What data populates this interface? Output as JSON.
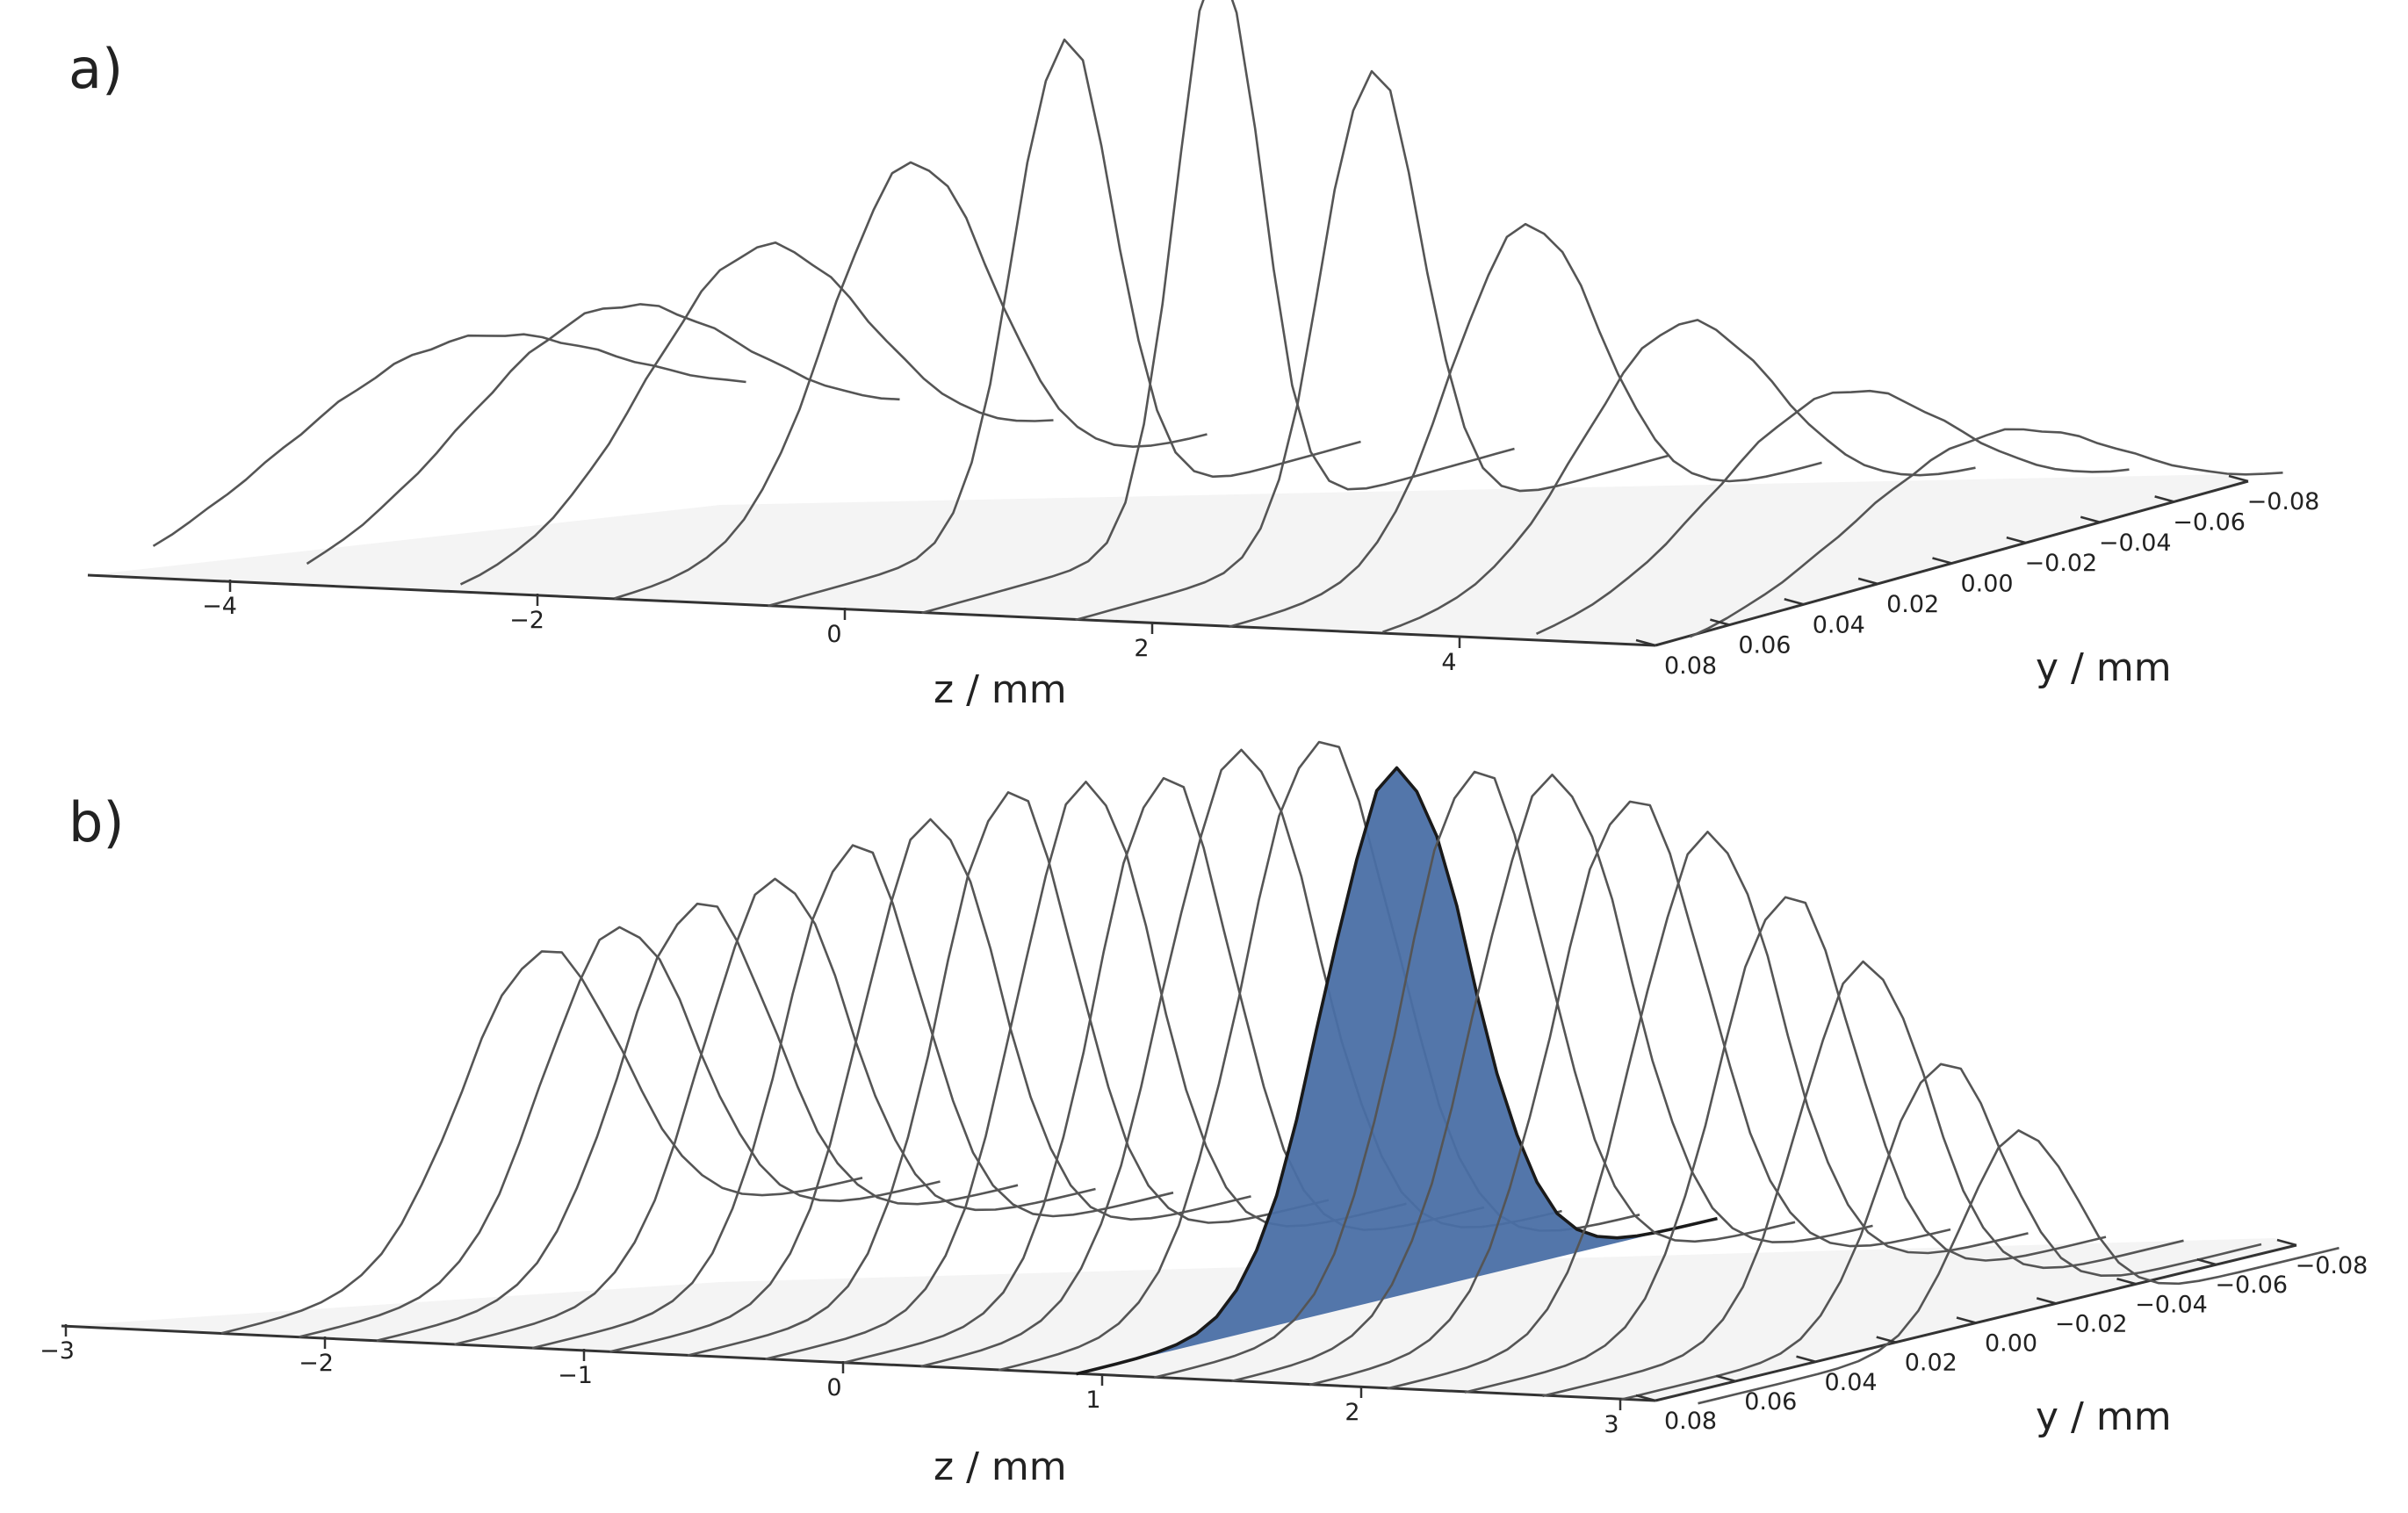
{
  "chart_data": [
    {
      "panel_label": "a)",
      "type": "waterfall-3d",
      "xlabel": "z / mm",
      "ylabel": "y / mm",
      "z_ticks": [
        "−4",
        "−2",
        "0",
        "2",
        "4"
      ],
      "y_ticks": [
        "0.08",
        "0.06",
        "0.04",
        "0.02",
        "0.00",
        "−0.02",
        "−0.04",
        "−0.06",
        "−0.08"
      ],
      "zlim": [
        -5,
        5
      ],
      "ylim": [
        0.08,
        -0.08
      ],
      "line_color": "#555555",
      "series": [
        {
          "z": -4.5,
          "peak": 0.27,
          "width": 0.045
        },
        {
          "z": -3.5,
          "peak": 0.34,
          "width": 0.038
        },
        {
          "z": -2.5,
          "peak": 0.46,
          "width": 0.03
        },
        {
          "z": -1.5,
          "peak": 0.62,
          "width": 0.022
        },
        {
          "z": -0.5,
          "peak": 0.85,
          "width": 0.0135
        },
        {
          "z": 0.5,
          "peak": 1.0,
          "width": 0.0115
        },
        {
          "z": 1.5,
          "peak": 0.82,
          "width": 0.0135
        },
        {
          "z": 2.5,
          "peak": 0.56,
          "width": 0.02
        },
        {
          "z": 3.5,
          "peak": 0.4,
          "width": 0.026
        },
        {
          "z": 4.5,
          "peak": 0.29,
          "width": 0.032
        },
        {
          "z": 5.5,
          "peak": 0.23,
          "width": 0.036
        }
      ]
    },
    {
      "panel_label": "b)",
      "type": "waterfall-3d",
      "xlabel": "z / mm",
      "ylabel": "y / mm",
      "z_ticks": [
        "−3",
        "−2",
        "−1",
        "0",
        "1",
        "2",
        "3"
      ],
      "y_ticks": [
        "0.08",
        "0.06",
        "0.04",
        "0.02",
        "0.00",
        "−0.02",
        "−0.04",
        "−0.06",
        "−0.08"
      ],
      "zlim": [
        -3,
        3
      ],
      "ylim": [
        0.08,
        -0.08
      ],
      "line_color": "#555555",
      "highlight_color": "#4a6fa5",
      "highlight_index": 11,
      "series": [
        {
          "z": -2.4,
          "peak": 0.55,
          "width": 0.02
        },
        {
          "z": -2.1,
          "peak": 0.6,
          "width": 0.019
        },
        {
          "z": -1.8,
          "peak": 0.65,
          "width": 0.019
        },
        {
          "z": -1.5,
          "peak": 0.7,
          "width": 0.018
        },
        {
          "z": -1.2,
          "peak": 0.77,
          "width": 0.017
        },
        {
          "z": -0.9,
          "peak": 0.82,
          "width": 0.017
        },
        {
          "z": -0.6,
          "peak": 0.88,
          "width": 0.017
        },
        {
          "z": -0.3,
          "peak": 0.9,
          "width": 0.017
        },
        {
          "z": 0.0,
          "peak": 0.92,
          "width": 0.017
        },
        {
          "z": 0.3,
          "peak": 0.97,
          "width": 0.019
        },
        {
          "z": 0.6,
          "peak": 1.0,
          "width": 0.019
        },
        {
          "z": 0.9,
          "peak": 0.95,
          "width": 0.018
        },
        {
          "z": 1.2,
          "peak": 0.96,
          "width": 0.018
        },
        {
          "z": 1.5,
          "peak": 0.95,
          "width": 0.019
        },
        {
          "z": 1.8,
          "peak": 0.92,
          "width": 0.019
        },
        {
          "z": 2.1,
          "peak": 0.86,
          "width": 0.018
        },
        {
          "z": 2.4,
          "peak": 0.76,
          "width": 0.017
        },
        {
          "z": 2.7,
          "peak": 0.64,
          "width": 0.016
        },
        {
          "z": 3.0,
          "peak": 0.47,
          "width": 0.015
        },
        {
          "z": 3.3,
          "peak": 0.35,
          "width": 0.014
        }
      ]
    }
  ]
}
